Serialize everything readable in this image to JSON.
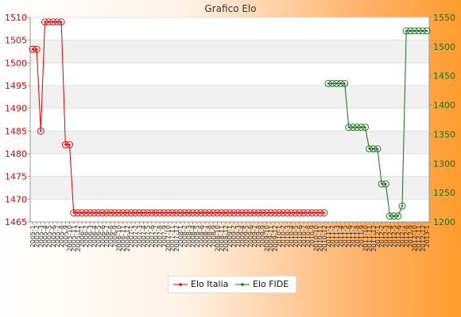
{
  "chart_data": {
    "type": "line",
    "title": "Grafico Elo",
    "xlabel": "",
    "grid": true,
    "legend_position": "bottom-center",
    "colors": {
      "Elo Italia": "#e00000",
      "Elo FIDE": "#1a6e1a",
      "axis_left": "#e00000",
      "axis_right": "#1a6e1a"
    },
    "y_left": {
      "label": "",
      "ylim": [
        1465,
        1510
      ],
      "ticks": [
        1465,
        1470,
        1475,
        1480,
        1485,
        1490,
        1495,
        1500,
        1505,
        1510
      ]
    },
    "y_right": {
      "label": "",
      "ylim": [
        1200,
        1550
      ],
      "ticks": [
        1200,
        1250,
        1300,
        1350,
        1400,
        1450,
        1500,
        1550
      ]
    },
    "x_count": 97,
    "x_tick_labels": [
      "2005-1",
      "2005-2",
      "2005-3",
      "2005-4",
      "2005-5",
      "2005-6",
      "2005-7",
      "2005-8",
      "2005-9",
      "2005-10",
      "2005-11",
      "2005-12",
      "2006-1",
      "2006-2",
      "2006-3",
      "2006-4",
      "2006-5",
      "2006-6",
      "2006-7",
      "2006-8",
      "2006-9",
      "2006-10",
      "2006-11",
      "2006-12",
      "2007-1",
      "2007-2",
      "2007-3",
      "2007-4",
      "2007-5",
      "2007-6",
      "2007-7",
      "2007-8",
      "2007-9",
      "2007-10",
      "2007-11",
      "2007-12",
      "2008-1",
      "2008-2",
      "2008-3",
      "2008-4",
      "2008-5",
      "2008-6",
      "2008-7",
      "2008-8",
      "2008-9",
      "2008-10",
      "2008-11",
      "2008-12",
      "2009-1",
      "2009-2",
      "2009-3",
      "2009-4",
      "2009-5",
      "2009-6",
      "2009-7",
      "2009-8",
      "2009-9",
      "2009-10",
      "2009-11",
      "2009-12",
      "2010-1",
      "2010-2",
      "2010-3",
      "2010-4",
      "2010-5",
      "2010-6",
      "2010-7",
      "2010-8",
      "2010-9",
      "2010-10",
      "2010-11",
      "2010-12",
      "2011-1",
      "2011-2",
      "2011-3",
      "2011-4",
      "2011-5",
      "2011-6",
      "2011-7",
      "2011-8",
      "2011-9",
      "2011-10",
      "2011-11",
      "2011-12",
      "2012-1",
      "2012-2",
      "2012-3",
      "2012-4",
      "2012-5",
      "2012-6",
      "2012-7",
      "2012-8",
      "2012-9",
      "2012-10",
      "2012-11",
      "2012-12",
      "2013-1"
    ],
    "series": [
      {
        "name": "Elo Italia",
        "axis": "left",
        "start_index": 0,
        "values": [
          1503,
          1503,
          1485,
          1509,
          1509,
          1509,
          1509,
          1509,
          1482,
          1482,
          1467,
          1467,
          1467,
          1467,
          1467,
          1467,
          1467,
          1467,
          1467,
          1467,
          1467,
          1467,
          1467,
          1467,
          1467,
          1467,
          1467,
          1467,
          1467,
          1467,
          1467,
          1467,
          1467,
          1467,
          1467,
          1467,
          1467,
          1467,
          1467,
          1467,
          1467,
          1467,
          1467,
          1467,
          1467,
          1467,
          1467,
          1467,
          1467,
          1467,
          1467,
          1467,
          1467,
          1467,
          1467,
          1467,
          1467,
          1467,
          1467,
          1467,
          1467,
          1467,
          1467,
          1467,
          1467,
          1467,
          1467,
          1467,
          1467,
          1467,
          1467,
          1467
        ]
      },
      {
        "name": "Elo FIDE",
        "axis": "right",
        "start_index": 72,
        "values": [
          1437,
          1437,
          1437,
          1437,
          1437,
          1362,
          1362,
          1362,
          1362,
          1362,
          1325,
          1325,
          1325,
          1265,
          1265,
          1210,
          1210,
          1210,
          1227,
          1527,
          1527,
          1527,
          1527,
          1527,
          1527
        ]
      }
    ]
  },
  "legend": {
    "items": [
      {
        "label": "Elo Italia"
      },
      {
        "label": "Elo FIDE"
      }
    ]
  }
}
